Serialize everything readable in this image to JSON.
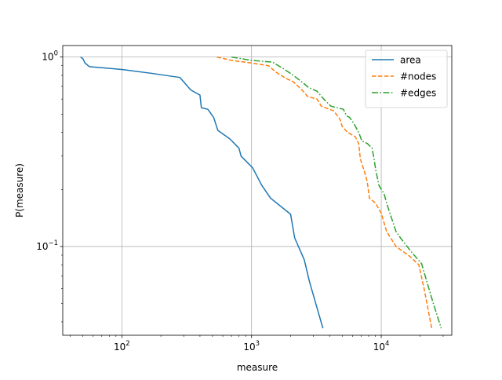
{
  "chart_data": {
    "type": "line",
    "xlabel": "measure",
    "ylabel": "P(measure)",
    "xscale": "log",
    "yscale": "log",
    "xlim": [
      35,
      35000
    ],
    "ylim": [
      0.034,
      1.15
    ],
    "grid": true,
    "legend_position": "top-right",
    "x_major_ticks": [
      {
        "value": 100,
        "base": "10",
        "exp": "2"
      },
      {
        "value": 1000,
        "base": "10",
        "exp": "3"
      },
      {
        "value": 10000,
        "base": "10",
        "exp": "4"
      }
    ],
    "y_major_ticks": [
      {
        "value": 0.1,
        "base": "10",
        "exp": "−1"
      },
      {
        "value": 1,
        "base": "10",
        "exp": "0"
      }
    ],
    "series": [
      {
        "name": "area",
        "color": "#1f77b4",
        "dash": "",
        "points": [
          [
            48,
            1.0
          ],
          [
            50,
            0.98
          ],
          [
            52,
            0.93
          ],
          [
            56,
            0.89
          ],
          [
            100,
            0.86
          ],
          [
            170,
            0.82
          ],
          [
            280,
            0.78
          ],
          [
            340,
            0.67
          ],
          [
            400,
            0.63
          ],
          [
            410,
            0.54
          ],
          [
            460,
            0.53
          ],
          [
            510,
            0.48
          ],
          [
            550,
            0.41
          ],
          [
            680,
            0.37
          ],
          [
            800,
            0.33
          ],
          [
            830,
            0.3
          ],
          [
            1020,
            0.26
          ],
          [
            1200,
            0.21
          ],
          [
            1400,
            0.18
          ],
          [
            2000,
            0.148
          ],
          [
            2150,
            0.111
          ],
          [
            2550,
            0.085
          ],
          [
            2800,
            0.065
          ],
          [
            3550,
            0.037
          ]
        ]
      },
      {
        "name": "#nodes",
        "color": "#ff7f0e",
        "dash": "5.5,2.4",
        "points": [
          [
            540,
            1.0
          ],
          [
            700,
            0.96
          ],
          [
            1000,
            0.93
          ],
          [
            1350,
            0.9
          ],
          [
            1550,
            0.83
          ],
          [
            1850,
            0.77
          ],
          [
            2100,
            0.74
          ],
          [
            2450,
            0.67
          ],
          [
            2700,
            0.62
          ],
          [
            3200,
            0.6
          ],
          [
            3450,
            0.55
          ],
          [
            4300,
            0.52
          ],
          [
            4800,
            0.47
          ],
          [
            5000,
            0.43
          ],
          [
            5500,
            0.4
          ],
          [
            6300,
            0.38
          ],
          [
            6700,
            0.35
          ],
          [
            6900,
            0.29
          ],
          [
            7400,
            0.25
          ],
          [
            7800,
            0.22
          ],
          [
            8100,
            0.18
          ],
          [
            9000,
            0.17
          ],
          [
            10000,
            0.15
          ],
          [
            11000,
            0.12
          ],
          [
            13000,
            0.1
          ],
          [
            16500,
            0.089
          ],
          [
            19500,
            0.08
          ],
          [
            21500,
            0.059
          ],
          [
            24500,
            0.037
          ]
        ]
      },
      {
        "name": "#edges",
        "color": "#2ca02c",
        "dash": "8,2.4,1.6,2.4",
        "points": [
          [
            700,
            1.0
          ],
          [
            1000,
            0.96
          ],
          [
            1450,
            0.94
          ],
          [
            1800,
            0.86
          ],
          [
            2100,
            0.8
          ],
          [
            2500,
            0.73
          ],
          [
            2750,
            0.69
          ],
          [
            3200,
            0.66
          ],
          [
            3600,
            0.6
          ],
          [
            4100,
            0.55
          ],
          [
            5100,
            0.53
          ],
          [
            5400,
            0.49
          ],
          [
            5700,
            0.48
          ],
          [
            6100,
            0.45
          ],
          [
            6700,
            0.4
          ],
          [
            7100,
            0.36
          ],
          [
            7800,
            0.35
          ],
          [
            8500,
            0.33
          ],
          [
            8800,
            0.29
          ],
          [
            9100,
            0.25
          ],
          [
            9600,
            0.21
          ],
          [
            10500,
            0.19
          ],
          [
            11300,
            0.16
          ],
          [
            13000,
            0.12
          ],
          [
            14200,
            0.11
          ],
          [
            17000,
            0.094
          ],
          [
            20500,
            0.081
          ],
          [
            22500,
            0.065
          ],
          [
            25000,
            0.051
          ],
          [
            29000,
            0.037
          ]
        ]
      }
    ]
  }
}
